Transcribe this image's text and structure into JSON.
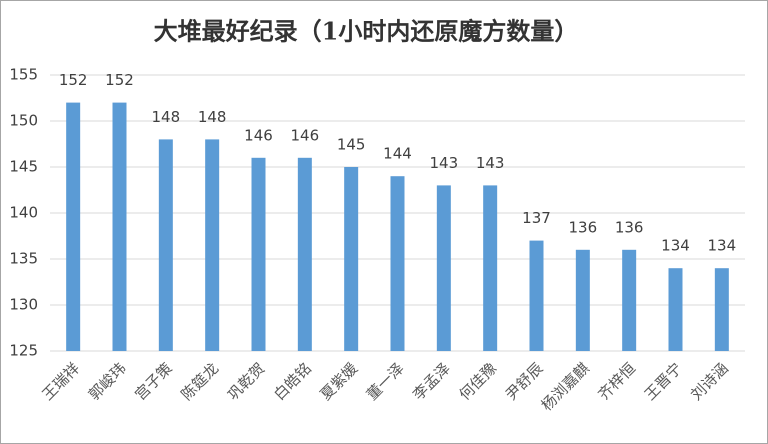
{
  "chart_data": {
    "type": "bar",
    "title": "大堆最好纪录（1小时内还原魔方数量）",
    "categories": [
      "王瑞祥",
      "郭峻玮",
      "宫子策",
      "陈筵龙",
      "巩乾贺",
      "白皓铭",
      "夏紫媛",
      "董一泽",
      "李孟泽",
      "何佳豫",
      "尹舒辰",
      "杨浏嘉麒",
      "齐梓恒",
      "王晋宁",
      "刘诗涵"
    ],
    "values": [
      152,
      152,
      148,
      148,
      146,
      146,
      145,
      144,
      143,
      143,
      137,
      136,
      136,
      134,
      134
    ],
    "color": "#5b9bd5",
    "ylim": [
      125,
      155
    ],
    "yticks": [
      125,
      130,
      135,
      140,
      145,
      150,
      155
    ],
    "grid": true
  }
}
